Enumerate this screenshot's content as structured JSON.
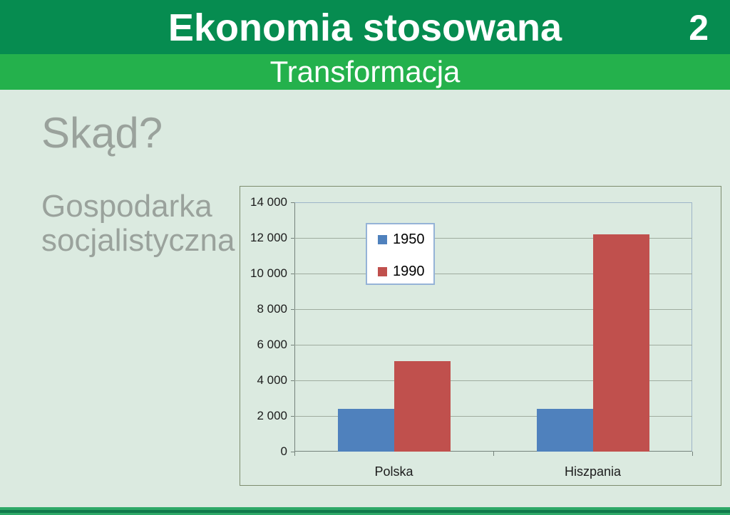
{
  "slide": {
    "number": "2",
    "title": "Ekonomia stosowana",
    "subtitle": "Transformacja",
    "heading": "Skąd?",
    "body_text": "Gospodarka socjalistyczna"
  },
  "colors": {
    "header_bg": "#068C50",
    "subtitle_bg": "#24B14C",
    "body_bg": "#DBEAE0",
    "gray_text": "#9AA29C",
    "chart_border": "#7D8C6E",
    "plot_border": "#9DB4C8",
    "grid_color": "#9FAC9F",
    "axis_color": "#75827B",
    "legend_border": "#95B3D7",
    "footer_bar": "#2FA968",
    "footer_stripe": "#11794C"
  },
  "chart_data": {
    "type": "bar",
    "title": "",
    "xlabel": "",
    "ylabel": "",
    "categories": [
      "Polska",
      "Hiszpania"
    ],
    "series": [
      {
        "name": "1950",
        "color": "#4F81BD",
        "values": [
          2400,
          2400
        ]
      },
      {
        "name": "1990",
        "color": "#C0504D",
        "values": [
          5100,
          12200
        ]
      }
    ],
    "ylim": [
      0,
      14000
    ],
    "ytick_step": 2000,
    "ytick_labels": [
      "0",
      "2 000",
      "4 000",
      "6 000",
      "8 000",
      "10 000",
      "12 000",
      "14 000"
    ],
    "grid": true,
    "legend_position": "inside-top-left"
  }
}
